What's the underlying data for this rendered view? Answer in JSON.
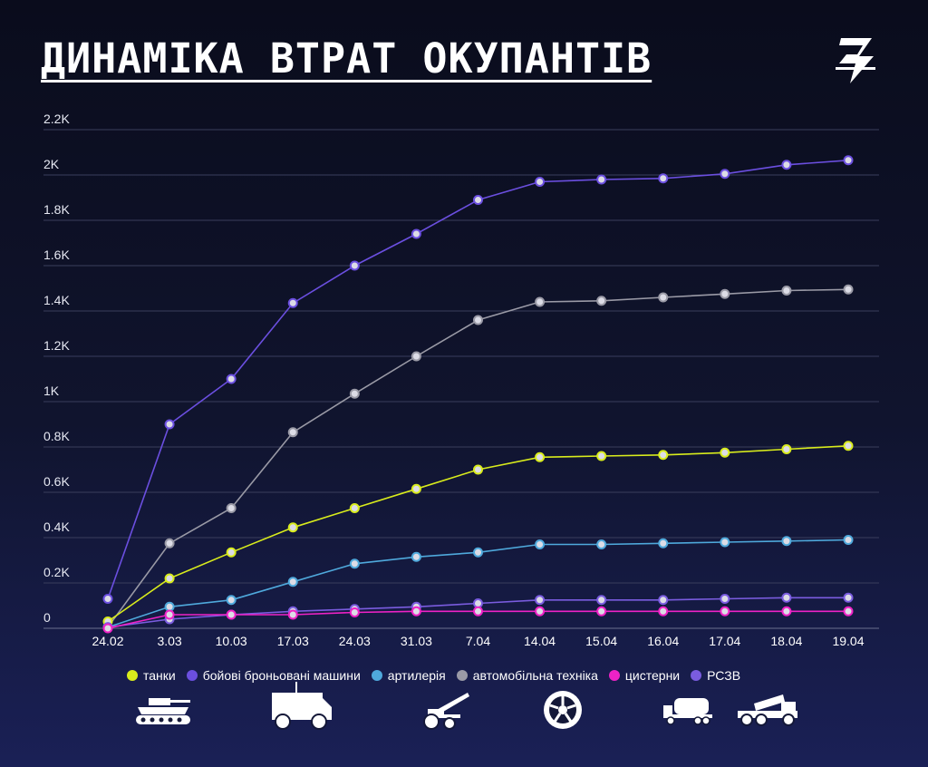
{
  "title": "ДИНАМІКА ВТРАТ ОКУПАНТІВ",
  "chart_data": {
    "type": "line",
    "categories": [
      "24.02",
      "3.03",
      "10.03",
      "17.03",
      "24.03",
      "31.03",
      "7.04",
      "14.04",
      "15.04",
      "16.04",
      "17.04",
      "18.04",
      "19.04"
    ],
    "y_ticks": [
      "0",
      "0.2K",
      "0.4K",
      "0.6K",
      "0.8K",
      "1K",
      "1.2K",
      "1.4K",
      "1.6K",
      "1.8K",
      "2K",
      "2.2K"
    ],
    "ylim": [
      0,
      2200
    ],
    "grid": true,
    "legend_position": "bottom",
    "series": [
      {
        "name": "бойові броньовані машини",
        "color": "#6b4fe0",
        "values": [
          130,
          900,
          1100,
          1435,
          1600,
          1740,
          1890,
          1970,
          1980,
          1985,
          2005,
          2045,
          2065
        ]
      },
      {
        "name": "автомобільна техніка",
        "color": "#9a9aa6",
        "values": [
          5,
          375,
          530,
          865,
          1035,
          1200,
          1360,
          1440,
          1445,
          1460,
          1475,
          1490,
          1495
        ]
      },
      {
        "name": "танки",
        "color": "#d9ec1c",
        "values": [
          30,
          220,
          335,
          445,
          530,
          615,
          700,
          755,
          760,
          765,
          775,
          790,
          805
        ]
      },
      {
        "name": "артилерія",
        "color": "#4fa9dc",
        "values": [
          5,
          95,
          125,
          205,
          285,
          315,
          335,
          370,
          370,
          375,
          380,
          385,
          390
        ]
      },
      {
        "name": "РСЗВ",
        "color": "#7a5cdf",
        "values": [
          5,
          40,
          60,
          75,
          85,
          95,
          110,
          125,
          125,
          125,
          130,
          135,
          135
        ]
      },
      {
        "name": "цистерни",
        "color": "#ee22c6",
        "values": [
          0,
          60,
          60,
          60,
          70,
          75,
          75,
          75,
          75,
          75,
          75,
          75,
          75
        ]
      }
    ]
  },
  "legend": [
    {
      "label": "танки",
      "color": "#d9ec1c"
    },
    {
      "label": "бойові броньовані машини",
      "color": "#6b4fe0"
    },
    {
      "label": "артилерія",
      "color": "#4fa9dc"
    },
    {
      "label": "автомобільна техніка",
      "color": "#9a9aa6"
    },
    {
      "label": "цистерни",
      "color": "#ee22c6"
    },
    {
      "label": "РСЗВ",
      "color": "#7a5cdf"
    }
  ],
  "icons": [
    "tank-icon",
    "armored-vehicle-icon",
    "artillery-icon",
    "wheel-icon",
    "tanker-truck-icon",
    "mlrs-truck-icon"
  ]
}
